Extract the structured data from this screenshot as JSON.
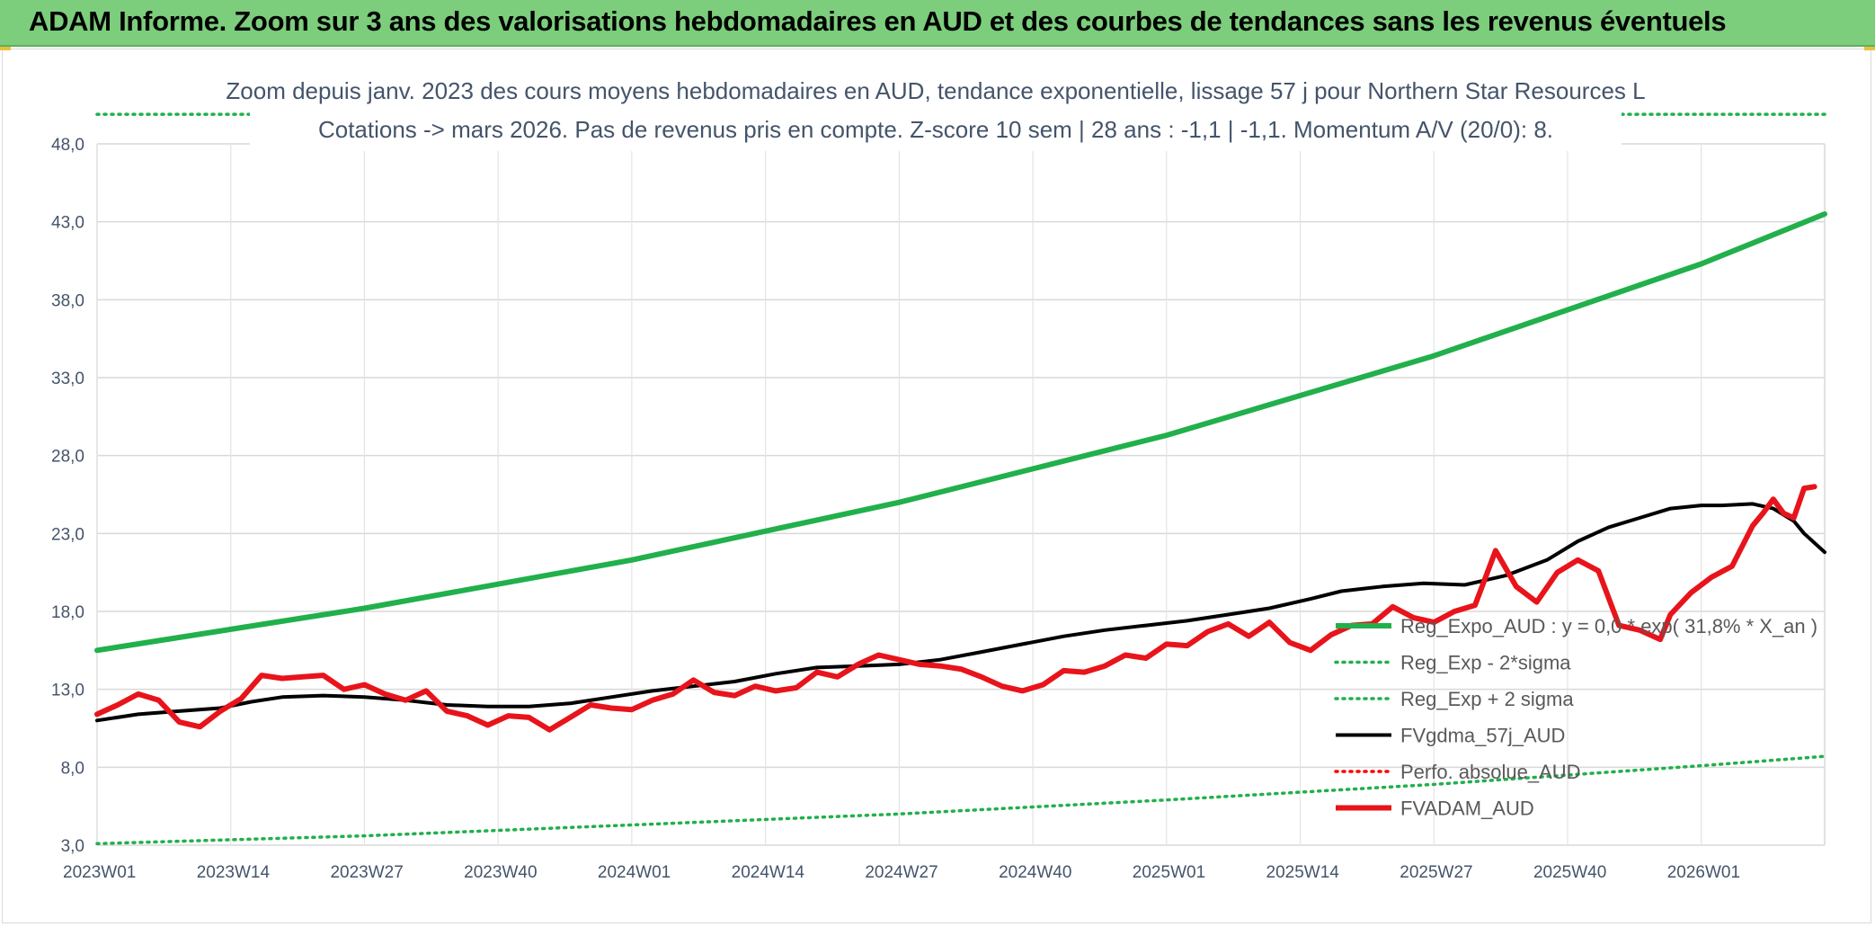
{
  "header": {
    "title": "ADAM Informe. Zoom sur 3 ans des valorisations hebdomadaires en AUD et des courbes de tendances sans les revenus éventuels"
  },
  "chart_data": {
    "type": "line",
    "title": "",
    "subtitle_line1": "Zoom depuis janv. 2023 des cours moyens hebdomadaires en AUD, tendance exponentielle, lissage 57 j pour Northern Star Resources L",
    "subtitle_line2": "Cotations -> mars 2026. Pas de revenus pris en compte. Z-score 10 sem | 28 ans : -1,1 | -1,1. Momentum A/V (20/0): 8.",
    "xlabel": "",
    "ylabel": "",
    "ylim": [
      3.0,
      48.0
    ],
    "yticks": [
      "3,0",
      "8,0",
      "13,0",
      "18,0",
      "23,0",
      "28,0",
      "33,0",
      "38,0",
      "43,0",
      "48,0"
    ],
    "xlim": [
      0,
      168
    ],
    "xticks": [
      {
        "week": 0,
        "label": "2023W01"
      },
      {
        "week": 13,
        "label": "2023W14"
      },
      {
        "week": 26,
        "label": "2023W27"
      },
      {
        "week": 39,
        "label": "2023W40"
      },
      {
        "week": 52,
        "label": "2024W01"
      },
      {
        "week": 65,
        "label": "2024W14"
      },
      {
        "week": 78,
        "label": "2024W27"
      },
      {
        "week": 91,
        "label": "2024W40"
      },
      {
        "week": 104,
        "label": "2025W01"
      },
      {
        "week": 117,
        "label": "2025W14"
      },
      {
        "week": 130,
        "label": "2025W27"
      },
      {
        "week": 143,
        "label": "2025W40"
      },
      {
        "week": 156,
        "label": "2026W01"
      }
    ],
    "grid": true,
    "legend_position": "bottom-right",
    "series": [
      {
        "name": "Reg_Expo_AUD : y = 0,0 * exp( 31,8% *  X_an )",
        "color": "#21b04b",
        "style": "solid-thick",
        "points": [
          [
            0,
            15.5
          ],
          [
            26,
            18.2
          ],
          [
            52,
            21.3
          ],
          [
            78,
            25.0
          ],
          [
            104,
            29.3
          ],
          [
            130,
            34.4
          ],
          [
            156,
            40.3
          ],
          [
            168,
            43.5
          ]
        ]
      },
      {
        "name": "Reg_Exp - 2*sigma",
        "color": "#21b04b",
        "style": "dotted",
        "points": [
          [
            0,
            3.1
          ],
          [
            26,
            3.6
          ],
          [
            52,
            4.3
          ],
          [
            78,
            5.0
          ],
          [
            104,
            5.9
          ],
          [
            130,
            6.9
          ],
          [
            156,
            8.1
          ],
          [
            168,
            8.7
          ]
        ]
      },
      {
        "name": "Reg_Exp + 2 sigma",
        "color": "#21b04b",
        "style": "dotted",
        "points": [
          [
            0,
            49.9
          ],
          [
            168,
            49.9
          ]
        ]
      },
      {
        "name": "FVgdma_57j_AUD",
        "color": "#000000",
        "style": "solid",
        "points": [
          [
            0,
            11.0
          ],
          [
            4,
            11.4
          ],
          [
            8,
            11.6
          ],
          [
            12,
            11.8
          ],
          [
            15,
            12.2
          ],
          [
            18,
            12.5
          ],
          [
            22,
            12.6
          ],
          [
            26,
            12.5
          ],
          [
            30,
            12.3
          ],
          [
            34,
            12.0
          ],
          [
            38,
            11.9
          ],
          [
            42,
            11.9
          ],
          [
            46,
            12.1
          ],
          [
            50,
            12.5
          ],
          [
            54,
            12.9
          ],
          [
            58,
            13.2
          ],
          [
            62,
            13.5
          ],
          [
            66,
            14.0
          ],
          [
            70,
            14.4
          ],
          [
            74,
            14.5
          ],
          [
            78,
            14.6
          ],
          [
            82,
            14.9
          ],
          [
            86,
            15.4
          ],
          [
            90,
            15.9
          ],
          [
            94,
            16.4
          ],
          [
            98,
            16.8
          ],
          [
            102,
            17.1
          ],
          [
            106,
            17.4
          ],
          [
            110,
            17.8
          ],
          [
            114,
            18.2
          ],
          [
            118,
            18.8
          ],
          [
            121,
            19.3
          ],
          [
            125,
            19.6
          ],
          [
            129,
            19.8
          ],
          [
            133,
            19.7
          ],
          [
            137,
            20.3
          ],
          [
            141,
            21.3
          ],
          [
            144,
            22.5
          ],
          [
            147,
            23.4
          ],
          [
            150,
            24.0
          ],
          [
            153,
            24.6
          ],
          [
            156,
            24.8
          ],
          [
            158,
            24.8
          ],
          [
            161,
            24.9
          ],
          [
            163,
            24.6
          ],
          [
            165,
            23.8
          ],
          [
            166,
            23.0
          ],
          [
            168,
            21.8
          ]
        ]
      },
      {
        "name": "Perfo. absolue_AUD",
        "color": "#ff0000",
        "style": "dotted",
        "points": []
      },
      {
        "name": "FVADAM_AUD",
        "color": "#e8141b",
        "style": "solid-thick",
        "points": [
          [
            0,
            11.4
          ],
          [
            2,
            12.0
          ],
          [
            4,
            12.7
          ],
          [
            6,
            12.3
          ],
          [
            8,
            10.9
          ],
          [
            10,
            10.6
          ],
          [
            12,
            11.6
          ],
          [
            14,
            12.4
          ],
          [
            16,
            13.9
          ],
          [
            18,
            13.7
          ],
          [
            20,
            13.8
          ],
          [
            22,
            13.9
          ],
          [
            24,
            13.0
          ],
          [
            26,
            13.3
          ],
          [
            28,
            12.7
          ],
          [
            30,
            12.3
          ],
          [
            32,
            12.9
          ],
          [
            34,
            11.6
          ],
          [
            36,
            11.3
          ],
          [
            38,
            10.7
          ],
          [
            40,
            11.3
          ],
          [
            42,
            11.2
          ],
          [
            44,
            10.4
          ],
          [
            46,
            11.2
          ],
          [
            48,
            12.0
          ],
          [
            50,
            11.8
          ],
          [
            52,
            11.7
          ],
          [
            54,
            12.3
          ],
          [
            56,
            12.7
          ],
          [
            58,
            13.6
          ],
          [
            60,
            12.8
          ],
          [
            62,
            12.6
          ],
          [
            64,
            13.2
          ],
          [
            66,
            12.9
          ],
          [
            68,
            13.1
          ],
          [
            70,
            14.1
          ],
          [
            72,
            13.8
          ],
          [
            74,
            14.6
          ],
          [
            76,
            15.2
          ],
          [
            78,
            14.9
          ],
          [
            80,
            14.6
          ],
          [
            82,
            14.5
          ],
          [
            84,
            14.3
          ],
          [
            86,
            13.8
          ],
          [
            88,
            13.2
          ],
          [
            90,
            12.9
          ],
          [
            92,
            13.3
          ],
          [
            94,
            14.2
          ],
          [
            96,
            14.1
          ],
          [
            98,
            14.5
          ],
          [
            100,
            15.2
          ],
          [
            102,
            15.0
          ],
          [
            104,
            15.9
          ],
          [
            106,
            15.8
          ],
          [
            108,
            16.7
          ],
          [
            110,
            17.2
          ],
          [
            112,
            16.4
          ],
          [
            114,
            17.3
          ],
          [
            116,
            16.0
          ],
          [
            118,
            15.5
          ],
          [
            120,
            16.5
          ],
          [
            122,
            17.1
          ],
          [
            124,
            17.2
          ],
          [
            126,
            18.3
          ],
          [
            128,
            17.6
          ],
          [
            130,
            17.3
          ],
          [
            132,
            18.0
          ],
          [
            134,
            18.4
          ],
          [
            136,
            21.9
          ],
          [
            138,
            19.6
          ],
          [
            140,
            18.6
          ],
          [
            142,
            20.5
          ],
          [
            144,
            21.3
          ],
          [
            146,
            20.6
          ],
          [
            148,
            17.1
          ],
          [
            150,
            16.8
          ],
          [
            152,
            16.2
          ],
          [
            153,
            17.8
          ],
          [
            155,
            19.2
          ],
          [
            157,
            20.2
          ],
          [
            159,
            20.9
          ],
          [
            161,
            23.5
          ],
          [
            162,
            24.3
          ],
          [
            163,
            25.2
          ],
          [
            164,
            24.3
          ],
          [
            165,
            24.0
          ],
          [
            166,
            25.9
          ],
          [
            167,
            26.0
          ]
        ]
      }
    ]
  }
}
